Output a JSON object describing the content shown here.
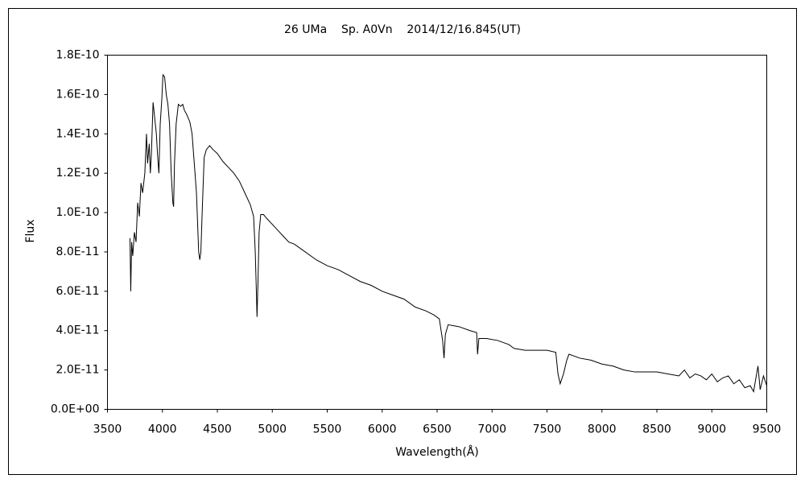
{
  "chart_data": {
    "type": "line",
    "title": "26 UMa    Sp. A0Vn    2014/12/16.845(UT)",
    "x_label": "Wavelength(Å)",
    "y_label": "Flux",
    "xlim": [
      3500,
      9500
    ],
    "xticks": [
      3500,
      4000,
      4500,
      5000,
      5500,
      6000,
      6500,
      7000,
      7500,
      8000,
      8500,
      9000,
      9500
    ],
    "ylim": [
      0,
      1.8e-10
    ],
    "yticks": [
      {
        "value": 0,
        "label": "0.0E+00"
      },
      {
        "value": 2e-11,
        "label": "2.0E-11"
      },
      {
        "value": 4e-11,
        "label": "4.0E-11"
      },
      {
        "value": 6e-11,
        "label": "6.0E-11"
      },
      {
        "value": 8e-11,
        "label": "8.0E-11"
      },
      {
        "value": 1e-10,
        "label": "1.0E-10"
      },
      {
        "value": 1.2e-10,
        "label": "1.2E-10"
      },
      {
        "value": 1.4e-10,
        "label": "1.4E-10"
      },
      {
        "value": 1.6e-10,
        "label": "1.6E-10"
      },
      {
        "value": 1.8e-10,
        "label": "1.8E-10"
      }
    ],
    "grid": false,
    "color": "#000000",
    "x": [
      3705,
      3712,
      3720,
      3730,
      3745,
      3760,
      3775,
      3790,
      3805,
      3820,
      3840,
      3855,
      3865,
      3880,
      3890,
      3900,
      3915,
      3930,
      3945,
      3955,
      3968,
      3980,
      3995,
      4005,
      4020,
      4035,
      4050,
      4065,
      4080,
      4095,
      4102,
      4110,
      4125,
      4145,
      4165,
      4185,
      4200,
      4220,
      4250,
      4270,
      4290,
      4310,
      4330,
      4340,
      4350,
      4365,
      4380,
      4400,
      4430,
      4460,
      4500,
      4550,
      4600,
      4650,
      4700,
      4750,
      4800,
      4830,
      4845,
      4855,
      4861,
      4870,
      4880,
      4895,
      4920,
      4950,
      5000,
      5050,
      5100,
      5150,
      5200,
      5300,
      5400,
      5500,
      5600,
      5700,
      5800,
      5900,
      6000,
      6100,
      6200,
      6300,
      6400,
      6470,
      6520,
      6550,
      6563,
      6575,
      6600,
      6700,
      6800,
      6860,
      6868,
      6880,
      6950,
      7050,
      7150,
      7200,
      7300,
      7400,
      7500,
      7580,
      7600,
      7620,
      7650,
      7680,
      7700,
      7800,
      7900,
      8000,
      8100,
      8200,
      8300,
      8400,
      8500,
      8600,
      8700,
      8750,
      8800,
      8850,
      8900,
      8950,
      9000,
      9050,
      9100,
      9150,
      9200,
      9250,
      9300,
      9350,
      9380,
      9420,
      9440,
      9470,
      9500
    ],
    "values": [
      8.7e-11,
      6e-11,
      8.5e-11,
      7.8e-11,
      9e-11,
      8.5e-11,
      1.05e-10,
      9.8e-11,
      1.15e-10,
      1.1e-10,
      1.2e-10,
      1.4e-10,
      1.25e-10,
      1.35e-10,
      1.2e-10,
      1.3e-10,
      1.56e-10,
      1.48e-10,
      1.4e-10,
      1.3e-10,
      1.2e-10,
      1.45e-10,
      1.58e-10,
      1.7e-10,
      1.69e-10,
      1.6e-10,
      1.55e-10,
      1.45e-10,
      1.2e-10,
      1.05e-10,
      1.03e-10,
      1.25e-10,
      1.45e-10,
      1.55e-10,
      1.54e-10,
      1.55e-10,
      1.52e-10,
      1.5e-10,
      1.46e-10,
      1.4e-10,
      1.25e-10,
      1.1e-10,
      8e-11,
      7.6e-11,
      8e-11,
      1.05e-10,
      1.28e-10,
      1.32e-10,
      1.34e-10,
      1.32e-10,
      1.3e-10,
      1.26e-10,
      1.23e-10,
      1.2e-10,
      1.16e-10,
      1.1e-10,
      1.04e-10,
      9.8e-11,
      8e-11,
      6e-11,
      4.7e-11,
      6.5e-11,
      9e-11,
      9.9e-11,
      9.9e-11,
      9.7e-11,
      9.4e-11,
      9.1e-11,
      8.8e-11,
      8.5e-11,
      8.4e-11,
      8e-11,
      7.6e-11,
      7.3e-11,
      7.1e-11,
      6.8e-11,
      6.5e-11,
      6.3e-11,
      6e-11,
      5.8e-11,
      5.6e-11,
      5.2e-11,
      5e-11,
      4.8e-11,
      4.6e-11,
      3.5e-11,
      2.6e-11,
      3.8e-11,
      4.3e-11,
      4.2e-11,
      4e-11,
      3.9e-11,
      2.8e-11,
      3.6e-11,
      3.6e-11,
      3.5e-11,
      3.3e-11,
      3.1e-11,
      3e-11,
      3e-11,
      3e-11,
      2.9e-11,
      1.8e-11,
      1.3e-11,
      1.8e-11,
      2.5e-11,
      2.8e-11,
      2.6e-11,
      2.5e-11,
      2.3e-11,
      2.2e-11,
      2e-11,
      1.9e-11,
      1.9e-11,
      1.9e-11,
      1.8e-11,
      1.7e-11,
      2e-11,
      1.6e-11,
      1.8e-11,
      1.7e-11,
      1.5e-11,
      1.8e-11,
      1.4e-11,
      1.6e-11,
      1.7e-11,
      1.3e-11,
      1.5e-11,
      1.1e-11,
      1.2e-11,
      9e-12,
      2.2e-11,
      1e-11,
      1.7e-11,
      1.2e-11
    ]
  }
}
